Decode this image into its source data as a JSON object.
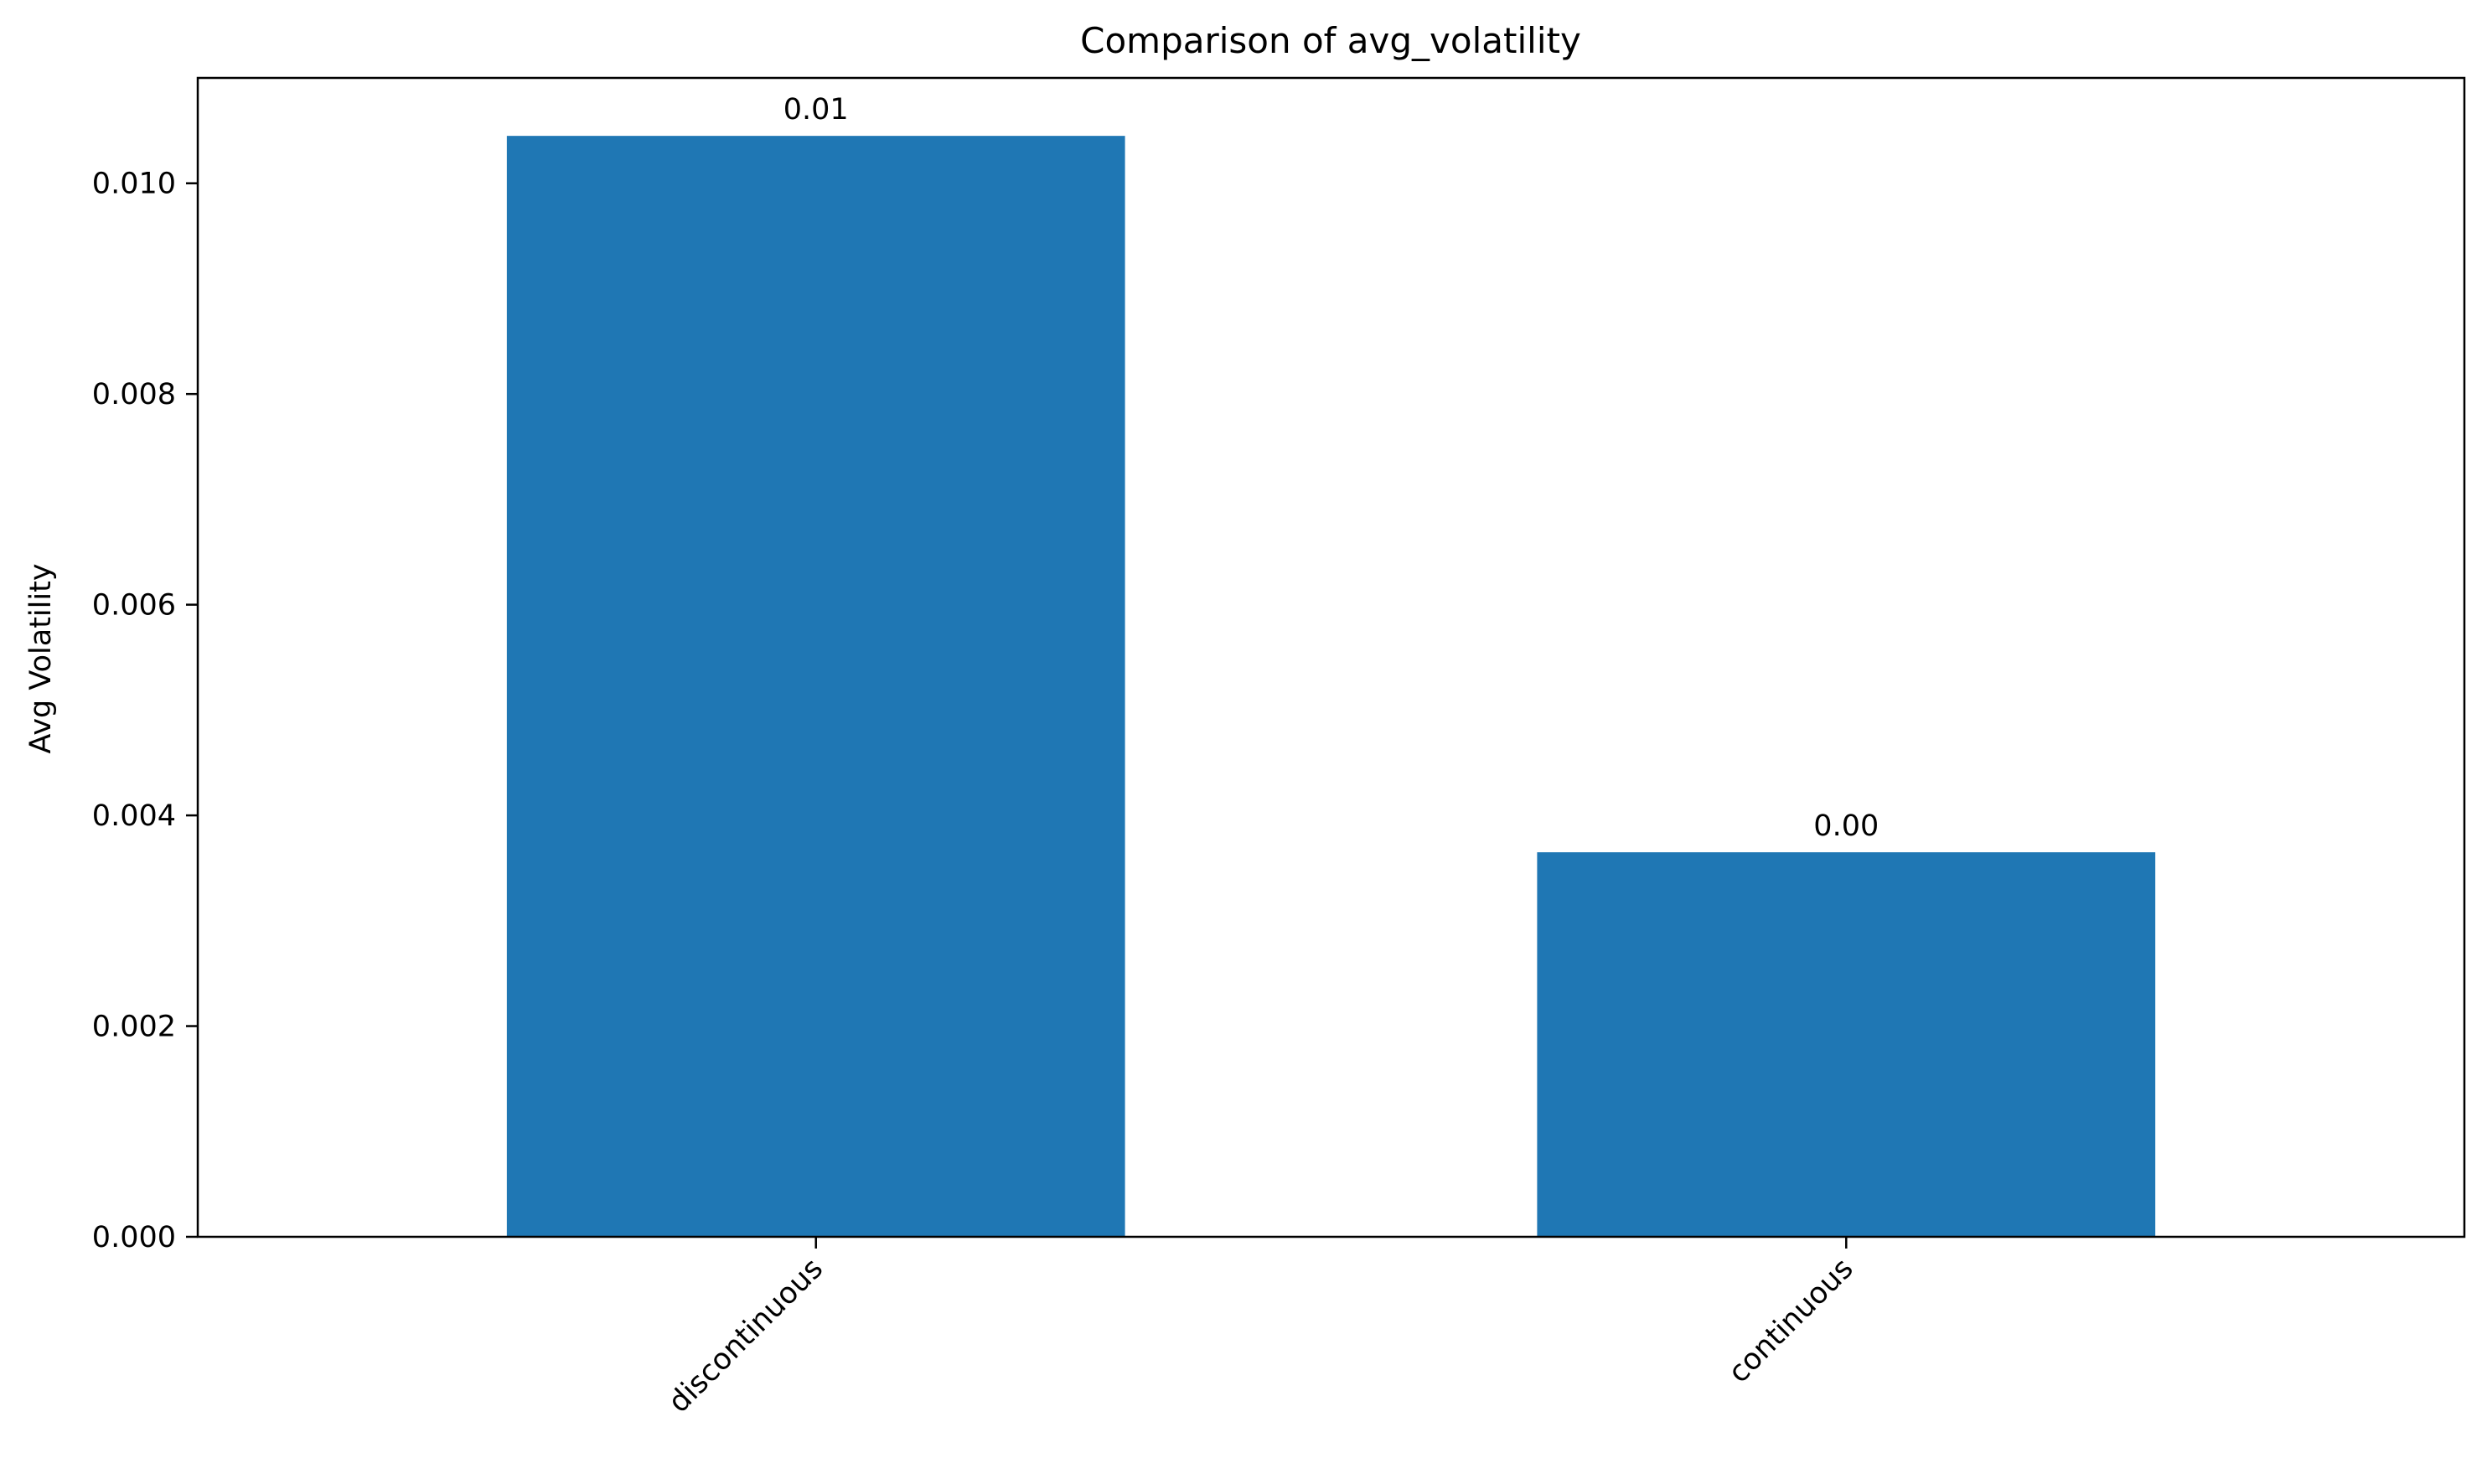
{
  "chart_data": {
    "type": "bar",
    "title": "Comparison of avg_volatility",
    "xlabel": "",
    "ylabel": "Avg Volatility",
    "categories": [
      "discontinuous",
      "continuous"
    ],
    "values": [
      0.01045,
      0.00365
    ],
    "data_labels": [
      "0.01",
      "0.00"
    ],
    "ylim": [
      0,
      0.011
    ],
    "yticks": [
      0.0,
      0.002,
      0.004,
      0.006,
      0.008,
      0.01
    ],
    "ytick_labels": [
      "0.000",
      "0.002",
      "0.004",
      "0.006",
      "0.008",
      "0.010"
    ],
    "bar_color": "#1f77b4",
    "grid": false,
    "legend": "none"
  }
}
